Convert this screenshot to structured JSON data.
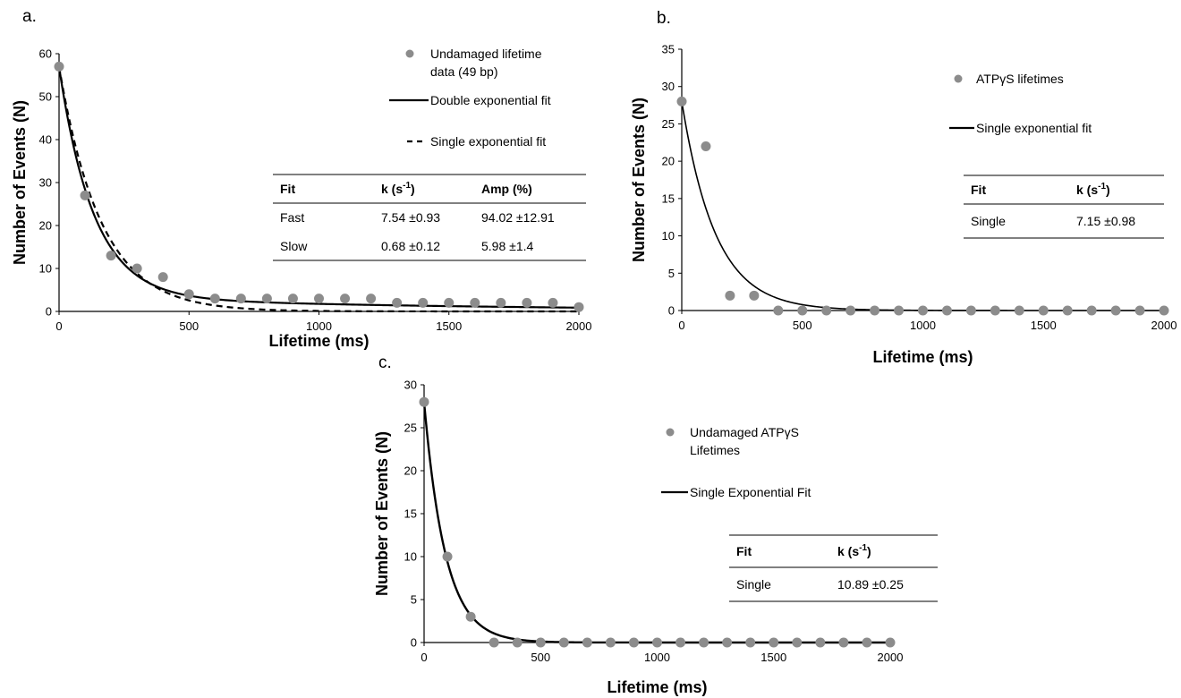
{
  "chart_data": [
    {
      "panel_label": "a.",
      "type": "scatter",
      "xlabel": "Lifetime (ms)",
      "ylabel": "Number of Events (N)",
      "xlim": [
        0,
        2000
      ],
      "ylim": [
        0,
        60
      ],
      "xticks": [
        "0",
        "500",
        "1000",
        "1500",
        "2000"
      ],
      "yticks": [
        "0",
        "10",
        "20",
        "30",
        "40",
        "50",
        "60"
      ],
      "points_color": "#8c8c8c",
      "series": [
        {
          "name": "Undamaged lifetime data (49 bp)",
          "kind": "points",
          "x": [
            0,
            100,
            200,
            300,
            400,
            500,
            600,
            700,
            800,
            900,
            1000,
            1100,
            1200,
            1300,
            1400,
            1500,
            1600,
            1700,
            1800,
            1900,
            2000
          ],
          "y": [
            57,
            27,
            13,
            10,
            8,
            4,
            3,
            3,
            3,
            3,
            3,
            3,
            3,
            2,
            2,
            2,
            2,
            2,
            2,
            2,
            1
          ]
        },
        {
          "name": "Double exponential fit",
          "kind": "double_exp_line",
          "dash": "",
          "a0": 57,
          "k1": 7.54,
          "f1": 0.9402,
          "k2": 0.68,
          "f2": 0.0598
        },
        {
          "name": "Single exponential fit",
          "kind": "single_exp_line",
          "dash": "7,5",
          "a0": 57,
          "k": 6.2
        }
      ],
      "legend": [
        {
          "marker": "dot",
          "lines": [
            "Undamaged lifetime",
            "data (49 bp)"
          ]
        },
        {
          "marker": "line",
          "lines": [
            "Double exponential fit"
          ]
        },
        {
          "marker": "dash",
          "lines": [
            "Single exponential fit"
          ]
        }
      ],
      "table": {
        "headers": [
          {
            "text": "Fit",
            "sup": ""
          },
          {
            "text": "k (s",
            "sup": "-1",
            "tail": ")"
          },
          {
            "text": "Amp (%)",
            "sup": ""
          }
        ],
        "rows": [
          [
            "Fast",
            "7.54 ±0.93",
            "94.02 ±12.91"
          ],
          [
            "Slow",
            "0.68 ±0.12",
            "5.98 ±1.4"
          ]
        ]
      }
    },
    {
      "panel_label": "b.",
      "type": "scatter",
      "xlabel": "Lifetime (ms)",
      "ylabel": "Number of Events (N)",
      "xlim": [
        0,
        2000
      ],
      "ylim": [
        0,
        35
      ],
      "xticks": [
        "0",
        "500",
        "1000",
        "1500",
        "2000"
      ],
      "yticks": [
        "0",
        "5",
        "10",
        "15",
        "20",
        "25",
        "30",
        "35"
      ],
      "points_color": "#8c8c8c",
      "series": [
        {
          "name": "ATPγS lifetimes",
          "kind": "points",
          "x": [
            0,
            100,
            200,
            300,
            400,
            500,
            600,
            700,
            800,
            900,
            1000,
            1100,
            1200,
            1300,
            1400,
            1500,
            1600,
            1700,
            1800,
            1900,
            2000
          ],
          "y": [
            28,
            22,
            2,
            2,
            0,
            0,
            0,
            0,
            0,
            0,
            0,
            0,
            0,
            0,
            0,
            0,
            0,
            0,
            0,
            0,
            0
          ]
        },
        {
          "name": "Single exponential fit",
          "kind": "single_exp_line",
          "dash": "",
          "a0": 28,
          "k": 7.15
        }
      ],
      "legend": [
        {
          "marker": "dot",
          "lines": [
            "ATPγS lifetimes"
          ]
        },
        {
          "marker": "line",
          "lines": [
            "Single exponential fit"
          ]
        }
      ],
      "table": {
        "headers": [
          {
            "text": "Fit",
            "sup": ""
          },
          {
            "text": "k (s",
            "sup": "-1",
            "tail": ")"
          }
        ],
        "rows": [
          [
            "Single",
            "7.15 ±0.98"
          ]
        ]
      }
    },
    {
      "panel_label": "c.",
      "type": "scatter",
      "xlabel": "Lifetime (ms)",
      "ylabel": "Number of Events (N)",
      "xlim": [
        0,
        2000
      ],
      "ylim": [
        0,
        30
      ],
      "xticks": [
        "0",
        "500",
        "1000",
        "1500",
        "2000"
      ],
      "yticks": [
        "0",
        "5",
        "10",
        "15",
        "20",
        "25",
        "30"
      ],
      "points_color": "#8c8c8c",
      "series": [
        {
          "name": "Undamaged ATPγS Lifetimes",
          "kind": "points",
          "x": [
            0,
            100,
            200,
            300,
            400,
            500,
            600,
            700,
            800,
            900,
            1000,
            1100,
            1200,
            1300,
            1400,
            1500,
            1600,
            1700,
            1800,
            1900,
            2000
          ],
          "y": [
            28,
            10,
            3,
            0,
            0,
            0,
            0,
            0,
            0,
            0,
            0,
            0,
            0,
            0,
            0,
            0,
            0,
            0,
            0,
            0,
            0
          ]
        },
        {
          "name": "Single Exponential Fit",
          "kind": "single_exp_line",
          "dash": "",
          "a0": 28,
          "k": 10.89
        }
      ],
      "legend": [
        {
          "marker": "dot",
          "lines": [
            "Undamaged ATPγS",
            "Lifetimes"
          ]
        },
        {
          "marker": "line",
          "lines": [
            "Single Exponential Fit"
          ]
        }
      ],
      "table": {
        "headers": [
          {
            "text": "Fit",
            "sup": ""
          },
          {
            "text": "k (s",
            "sup": "-1",
            "tail": ")"
          }
        ],
        "rows": [
          [
            "Single",
            "10.89 ±0.25"
          ]
        ]
      }
    }
  ]
}
